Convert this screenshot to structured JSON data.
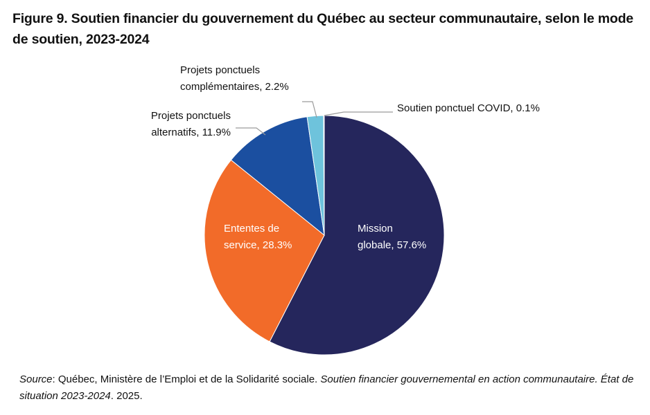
{
  "title": "Figure 9. Soutien financier du gouvernement du Québec au secteur communautaire, selon le mode de soutien, 2023-2024",
  "chart_data": {
    "type": "pie",
    "title": "Figure 9. Soutien financier du gouvernement du Québec au secteur communautaire, selon le mode de soutien, 2023-2024",
    "unit": "%",
    "slices": [
      {
        "name": "Mission globale",
        "value": 57.6,
        "label_lines": [
          "Mission",
          "globale, 57.6%"
        ],
        "color": "#25265c",
        "label_color": "#ffffff"
      },
      {
        "name": "Ententes de service",
        "value": 28.3,
        "label_lines": [
          "Ententes de",
          "service, 28.3%"
        ],
        "color": "#f26b29",
        "label_color": "#ffffff"
      },
      {
        "name": "Projets ponctuels alternatifs",
        "value": 11.9,
        "label_lines": [
          "Projets ponctuels",
          "alternatifs, 11.9%"
        ],
        "color": "#1b4fa0",
        "label_color": "#111111"
      },
      {
        "name": "Projets ponctuels complémentaires",
        "value": 2.2,
        "label_lines": [
          "Projets ponctuels",
          "complémentaires, 2.2%"
        ],
        "color": "#6ec3dc",
        "label_color": "#111111"
      },
      {
        "name": "Soutien ponctuel COVID",
        "value": 0.1,
        "label_lines": [
          "Soutien ponctuel COVID, 0.1%"
        ],
        "color": "#b5307a",
        "label_color": "#111111"
      }
    ]
  },
  "source": {
    "label": "Source",
    "text1": ": Québec, Ministère de l’Emploi et de la Solidarité sociale. ",
    "title_italic": "Soutien financier gouvernemental en action communautaire. État de situation 2023-2024",
    "text2": ". 2025."
  }
}
